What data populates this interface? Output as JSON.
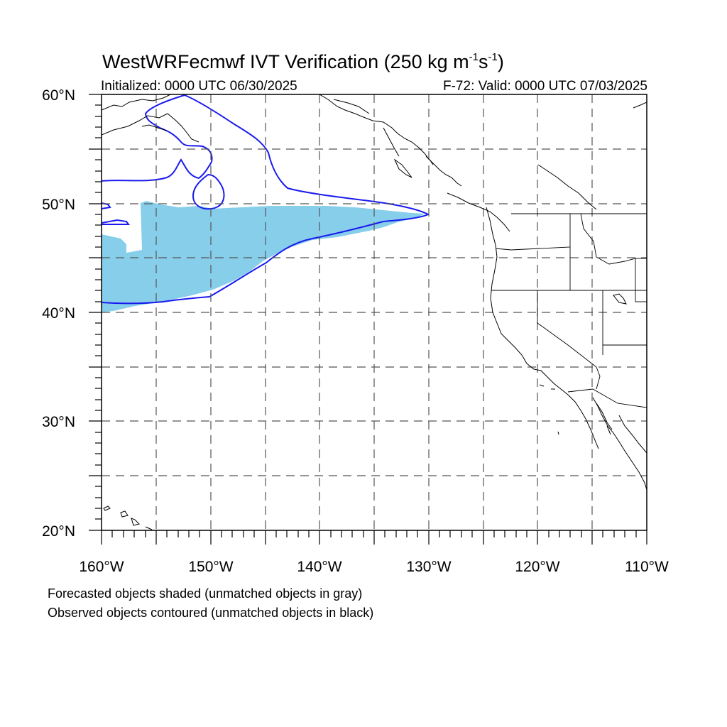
{
  "title": {
    "main": "WestWRFecmwf IVT Verification (250 kg m",
    "sup1": "-1",
    "mid": "s",
    "sup2": "-1",
    "end": ")"
  },
  "subtitle_left": "Initialized: 0000 UTC 06/30/2025",
  "subtitle_right": "F-72: Valid: 0000 UTC 07/03/2025",
  "legend_notes": [
    "Forecasted objects shaded (unmatched objects in gray)",
    "Observed objects contoured (unmatched objects in black)"
  ],
  "map": {
    "extent": {
      "lon": [
        -160,
        -110
      ],
      "lat": [
        20,
        60
      ]
    },
    "lat_labels": [
      "20°N",
      "30°N",
      "40°N",
      "50°N",
      "60°N"
    ],
    "lon_labels": [
      "160°W",
      "150°W",
      "140°W",
      "130°W",
      "120°W",
      "110°W"
    ],
    "grid": "dashed every 5 degrees",
    "colors": {
      "forecast_fill": "#87ceeb",
      "observed_contour": "#1a1aee",
      "coastline": "#000000",
      "grid": "#555555"
    }
  }
}
